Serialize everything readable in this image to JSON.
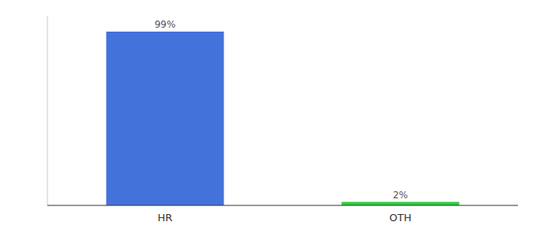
{
  "chart_data": {
    "type": "bar",
    "categories": [
      "HR",
      "OTH"
    ],
    "values": [
      99,
      2
    ],
    "value_labels": [
      "99%",
      "2%"
    ],
    "colors": [
      "#4472db",
      "#2ecc40"
    ],
    "ylim": [
      0,
      108
    ],
    "data_labels": true,
    "tick_labels": "x"
  }
}
